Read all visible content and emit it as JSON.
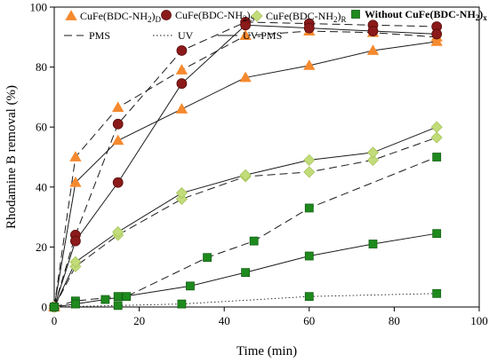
{
  "chart_data": {
    "type": "scatter",
    "title": "",
    "xlabel": "Time (min)",
    "ylabel": "Rhodamine B removal (%)",
    "xlim": [
      0,
      100
    ],
    "ylim": [
      0,
      100
    ],
    "xticks": [
      0,
      20,
      40,
      60,
      80,
      100
    ],
    "yticks": [
      0,
      20,
      40,
      60,
      80,
      100
    ],
    "grid": false,
    "legend_position": "top",
    "markers": [
      {
        "name": "CuFe(BDC-NH2)D",
        "base": "CuFe(BDC-NH",
        "mid": "2",
        "tail": ")",
        "sub": "D",
        "shape": "triangle",
        "color": "#f5892e",
        "stroke": "#f5892e"
      },
      {
        "name": "CuFe(BDC-NH2)S",
        "base": "CuFe(BDC-NH",
        "mid": "2",
        "tail": ")",
        "sub": "S",
        "shape": "circle",
        "color": "#8b1a1a",
        "stroke": "#5a0e0e"
      },
      {
        "name": "CuFe(BDC-NH2)R",
        "base": "CuFe(BDC-NH",
        "mid": "2",
        "tail": ")",
        "sub": "R",
        "shape": "diamond",
        "color": "#c2dc7a",
        "stroke": "#a7c45c"
      },
      {
        "name": "Without CuFe(BDC-NH2)x",
        "base": "Without CuFe(BDC-NH",
        "mid": "2",
        "tail": ")",
        "sub": "x",
        "shape": "square",
        "color": "#1e8a1e",
        "stroke": "#136013",
        "bold": true
      }
    ],
    "line_styles": [
      {
        "name": "PMS",
        "dash": "dashed"
      },
      {
        "name": "UV",
        "dash": "dotted"
      },
      {
        "name": "UV-PMS",
        "dash": "solid"
      }
    ],
    "series": [
      {
        "marker": "CuFe(BDC-NH2)D",
        "process": "PMS",
        "x": [
          0,
          5,
          15,
          30,
          45,
          60,
          75,
          90
        ],
        "y": [
          0,
          50,
          66.5,
          79,
          90.5,
          92,
          91.5,
          90
        ]
      },
      {
        "marker": "CuFe(BDC-NH2)D",
        "process": "UV-PMS",
        "x": [
          0,
          5,
          15,
          30,
          45,
          60,
          75,
          90
        ],
        "y": [
          0,
          41.5,
          55.5,
          66,
          76.5,
          80.5,
          85.5,
          88.5
        ]
      },
      {
        "marker": "CuFe(BDC-NH2)S",
        "process": "PMS",
        "x": [
          0,
          5,
          15,
          30,
          45,
          60,
          75,
          90
        ],
        "y": [
          0,
          24,
          61,
          85.5,
          95,
          94.5,
          94,
          93.5
        ]
      },
      {
        "marker": "CuFe(BDC-NH2)S",
        "process": "UV-PMS",
        "x": [
          0,
          5,
          15,
          30,
          45,
          60,
          75,
          90
        ],
        "y": [
          0,
          22,
          41.5,
          74.5,
          94,
          93,
          92,
          91
        ]
      },
      {
        "marker": "CuFe(BDC-NH2)R",
        "process": "PMS",
        "x": [
          0,
          5,
          15,
          30,
          45,
          60,
          75,
          90
        ],
        "y": [
          0,
          13.5,
          24,
          36,
          43.5,
          45,
          49,
          56.5
        ]
      },
      {
        "marker": "CuFe(BDC-NH2)R",
        "process": "UV-PMS",
        "x": [
          0,
          5,
          15,
          30,
          45,
          60,
          75,
          90
        ],
        "y": [
          0,
          15,
          25,
          38,
          44,
          49,
          51.5,
          60
        ]
      },
      {
        "marker": "Without CuFe(BDC-NH2)x",
        "process": "PMS",
        "x": [
          0,
          5,
          15,
          17,
          36,
          47,
          60,
          90
        ],
        "y": [
          0,
          2,
          3.5,
          3.5,
          16.5,
          22,
          33,
          50
        ]
      },
      {
        "marker": "Without CuFe(BDC-NH2)x",
        "process": "UV",
        "x": [
          0,
          15,
          30,
          60,
          90
        ],
        "y": [
          0,
          0.5,
          1,
          3.5,
          4.5
        ]
      },
      {
        "marker": "Without CuFe(BDC-NH2)x",
        "process": "UV-PMS",
        "x": [
          0,
          5,
          12,
          32,
          45,
          60,
          75,
          90
        ],
        "y": [
          0,
          1,
          2.5,
          7,
          11.5,
          17,
          21,
          24.5
        ]
      }
    ]
  }
}
